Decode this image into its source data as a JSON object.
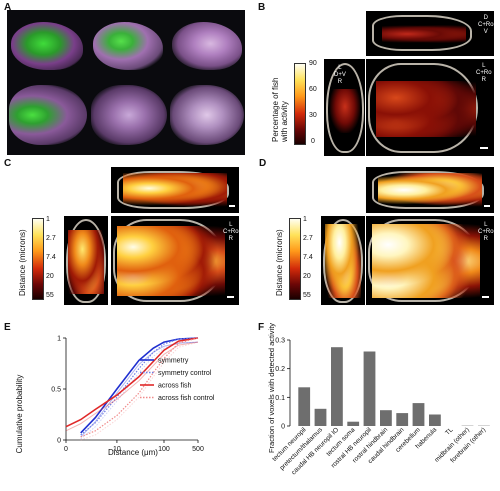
{
  "panels": {
    "A": "A",
    "B": "B",
    "C": "C",
    "D": "D",
    "E": "E",
    "F": "F"
  },
  "panel_b": {
    "colorbar_label_line1": "Percentage of fish",
    "colorbar_label_line2": "with activity",
    "ticks": [
      "90",
      "60",
      "30",
      "0"
    ],
    "orient_top": {
      "d": "D",
      "c": "C",
      "ro": "Ro",
      "v": "V"
    },
    "orient_side": {
      "d": "D",
      "v": "V",
      "l": "L",
      "r": "R"
    },
    "orient_main": {
      "l": "L",
      "c": "C",
      "ro": "Ro",
      "r": "R"
    }
  },
  "panel_c": {
    "colorbar_label": "Distance (microns)",
    "ticks": [
      "1",
      "2.7",
      "7.4",
      "20",
      "55"
    ],
    "orient_main": {
      "l": "L",
      "c": "C",
      "ro": "Ro",
      "r": "R"
    }
  },
  "panel_d": {
    "colorbar_label": "Distance (microns)",
    "ticks": [
      "1",
      "2.7",
      "7.4",
      "20",
      "55"
    ],
    "orient_main": {
      "l": "L",
      "c": "C",
      "ro": "Ro",
      "r": "R"
    }
  },
  "colors": {
    "symmetry": "#1f2fd0",
    "symmetry_control": "#6f7fe8",
    "across_fish": "#e02828",
    "across_fish_control": "#f08a8a",
    "bar": "#6e6e6e"
  },
  "chart_data": [
    {
      "type": "line",
      "xscale": "log",
      "xlabel": "Distance (μm)",
      "ylabel": "Cumulative probability",
      "xlim": [
        0,
        500
      ],
      "ylim": [
        0,
        1
      ],
      "xticks": [
        "0",
        "10",
        "100",
        "500"
      ],
      "yticks": [
        "0",
        "0.5",
        "1"
      ],
      "legend": "right",
      "series": [
        {
          "name": "symmetry",
          "style": "solid",
          "x": [
            1,
            3,
            10,
            30,
            60,
            100,
            200,
            500
          ],
          "y": [
            0.07,
            0.22,
            0.5,
            0.78,
            0.9,
            0.96,
            0.99,
            1.0
          ]
        },
        {
          "name": "symmetry control",
          "style": "dotted",
          "x": [
            1,
            3,
            10,
            30,
            60,
            100,
            200,
            500
          ],
          "y": [
            0.05,
            0.17,
            0.42,
            0.7,
            0.86,
            0.94,
            0.99,
            1.0
          ]
        },
        {
          "name": "across fish",
          "style": "solid",
          "x": [
            0,
            1,
            3,
            10,
            30,
            60,
            100,
            200,
            500
          ],
          "y": [
            0.13,
            0.2,
            0.3,
            0.44,
            0.62,
            0.77,
            0.88,
            0.97,
            1.0
          ]
        },
        {
          "name": "across fish control",
          "style": "dotted",
          "x": [
            1,
            3,
            10,
            30,
            60,
            100,
            200,
            500
          ],
          "y": [
            0.03,
            0.09,
            0.24,
            0.46,
            0.66,
            0.8,
            0.95,
            1.0
          ]
        }
      ]
    },
    {
      "type": "bar",
      "ylabel": "Fraction of voxels with detected activity",
      "ylim": [
        0,
        0.3
      ],
      "yticks": [
        "0",
        "0.1",
        "0.2",
        "0.3"
      ],
      "categories": [
        "tectum neuropil",
        "pretectum/thalamus",
        "caudal HB neuropil IO",
        "tectum soma",
        "rostral HB neuropil",
        "rostral hindbrain",
        "caudal hindbrain",
        "cerebellum",
        "habenula",
        "TL",
        "midbrain (other)",
        "forebrain (other)"
      ],
      "values": [
        0.135,
        0.06,
        0.275,
        0.015,
        0.26,
        0.055,
        0.045,
        0.08,
        0.04,
        0.0,
        0.001,
        0.001
      ]
    }
  ]
}
